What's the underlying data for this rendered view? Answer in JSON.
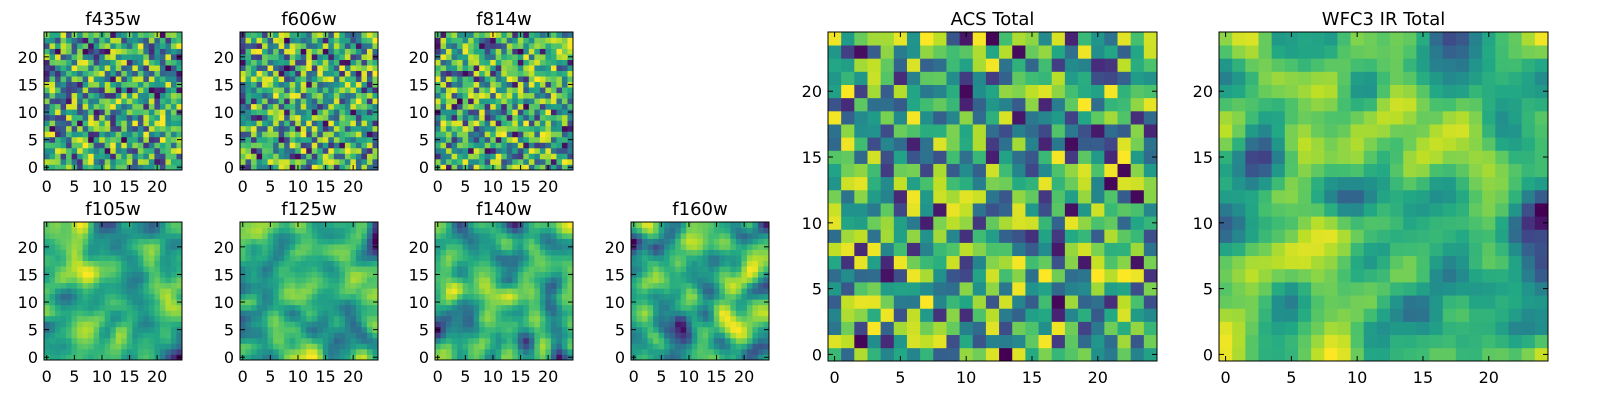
{
  "figure": {
    "colormap": "viridis",
    "background": "#ffffff"
  },
  "chart_data": [
    {
      "type": "heatmap",
      "title": "f435w",
      "grid": [
        25,
        25
      ],
      "xlim": [
        0,
        24
      ],
      "ylim": [
        0,
        24
      ],
      "xticks": [
        0,
        5,
        10,
        15,
        20
      ],
      "yticks": [
        0,
        5,
        10,
        15,
        20
      ],
      "texture": "noisy",
      "seed": 11,
      "grid_on": false
    },
    {
      "type": "heatmap",
      "title": "f606w",
      "grid": [
        25,
        25
      ],
      "xlim": [
        0,
        24
      ],
      "ylim": [
        0,
        24
      ],
      "xticks": [
        0,
        5,
        10,
        15,
        20
      ],
      "yticks": [
        0,
        5,
        10,
        15,
        20
      ],
      "texture": "noisy",
      "seed": 23,
      "grid_on": false
    },
    {
      "type": "heatmap",
      "title": "f814w",
      "grid": [
        25,
        25
      ],
      "xlim": [
        0,
        24
      ],
      "ylim": [
        0,
        24
      ],
      "xticks": [
        0,
        5,
        10,
        15,
        20
      ],
      "yticks": [
        0,
        5,
        10,
        15,
        20
      ],
      "texture": "noisy",
      "seed": 37,
      "grid_on": false
    },
    {
      "type": "heatmap",
      "title": "f105w",
      "grid": [
        25,
        25
      ],
      "xlim": [
        0,
        24
      ],
      "ylim": [
        0,
        24
      ],
      "xticks": [
        0,
        5,
        10,
        15,
        20
      ],
      "yticks": [
        0,
        5,
        10,
        15,
        20
      ],
      "texture": "smooth",
      "seed": 41,
      "grid_on": false
    },
    {
      "type": "heatmap",
      "title": "f125w",
      "grid": [
        25,
        25
      ],
      "xlim": [
        0,
        24
      ],
      "ylim": [
        0,
        24
      ],
      "xticks": [
        0,
        5,
        10,
        15,
        20
      ],
      "yticks": [
        0,
        5,
        10,
        15,
        20
      ],
      "texture": "smooth",
      "seed": 53,
      "grid_on": false
    },
    {
      "type": "heatmap",
      "title": "f140w",
      "grid": [
        25,
        25
      ],
      "xlim": [
        0,
        24
      ],
      "ylim": [
        0,
        24
      ],
      "xticks": [
        0,
        5,
        10,
        15,
        20
      ],
      "yticks": [
        0,
        5,
        10,
        15,
        20
      ],
      "texture": "smooth",
      "seed": 67,
      "grid_on": false
    },
    {
      "type": "heatmap",
      "title": "f160w",
      "grid": [
        25,
        25
      ],
      "xlim": [
        0,
        24
      ],
      "ylim": [
        0,
        24
      ],
      "xticks": [
        0,
        5,
        10,
        15,
        20
      ],
      "yticks": [
        0,
        5,
        10,
        15,
        20
      ],
      "texture": "smooth",
      "seed": 79,
      "grid_on": false
    },
    {
      "type": "heatmap",
      "title": "ACS Total",
      "grid": [
        25,
        25
      ],
      "xlim": [
        0,
        24
      ],
      "ylim": [
        0,
        24
      ],
      "xticks": [
        0,
        5,
        10,
        15,
        20
      ],
      "yticks": [
        0,
        5,
        10,
        15,
        20
      ],
      "texture": "noisy",
      "seed": 97,
      "grid_on": false
    },
    {
      "type": "heatmap",
      "title": "WFC3 IR Total",
      "grid": [
        25,
        25
      ],
      "xlim": [
        0,
        24
      ],
      "ylim": [
        0,
        24
      ],
      "xticks": [
        0,
        5,
        10,
        15,
        20
      ],
      "yticks": [
        0,
        5,
        10,
        15,
        20
      ],
      "texture": "smooth",
      "seed": 113,
      "grid_on": false
    }
  ]
}
